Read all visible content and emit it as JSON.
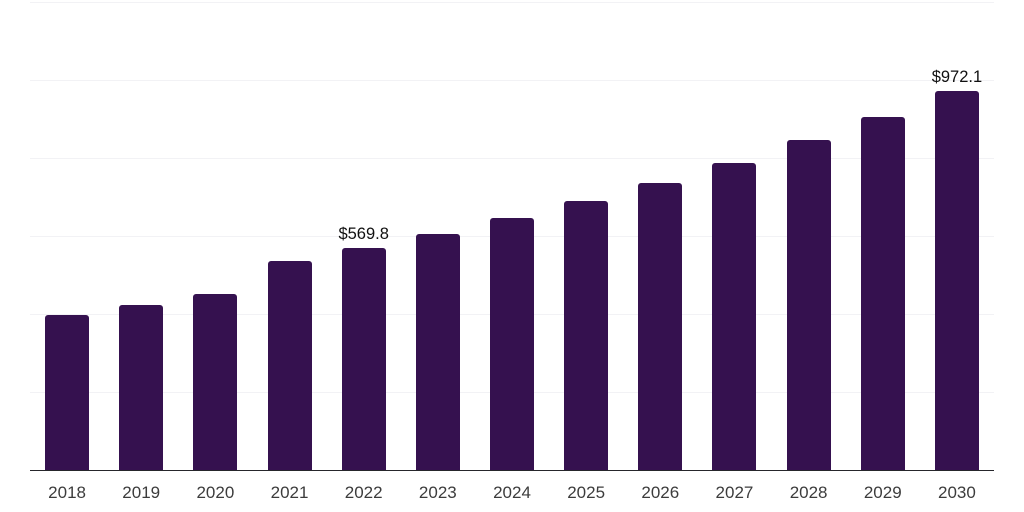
{
  "chart_data": {
    "type": "bar",
    "title": "",
    "xlabel": "",
    "ylabel": "",
    "categories": [
      "2018",
      "2019",
      "2020",
      "2021",
      "2022",
      "2023",
      "2024",
      "2025",
      "2026",
      "2027",
      "2028",
      "2029",
      "2030"
    ],
    "values": [
      398,
      424,
      452,
      535,
      569.8,
      605,
      646,
      691,
      737,
      788,
      845,
      906,
      972.1
    ],
    "value_labels": [
      {
        "category": "2022",
        "text": "$569.8"
      },
      {
        "category": "2030",
        "text": "$972.1"
      }
    ],
    "ylim": [
      0,
      1200
    ],
    "gridline_interval": 200,
    "grid": "horizontal",
    "y_tick_labels_visible": false,
    "legend": "none",
    "colors": {
      "bar": "#35114F",
      "gridline": "#f2f2f5",
      "axis_line": "#26262b",
      "tick_label": "#3c3c3c",
      "value_label": "#101010",
      "background": "#ffffff"
    }
  }
}
